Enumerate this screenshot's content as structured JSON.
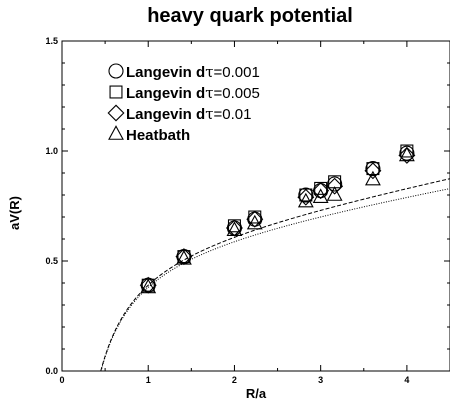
{
  "chart_data": {
    "type": "scatter",
    "title": "heavy quark potential",
    "xlabel": "R/a",
    "ylabel": "aV(R)",
    "xlim": [
      0,
      4.5
    ],
    "ylim": [
      0.0,
      1.5
    ],
    "x_ticks": [
      "0",
      "1",
      "2",
      "3",
      "4"
    ],
    "y_ticks": [
      "0.0",
      "0.5",
      "1.0",
      "1.5"
    ],
    "legend_position": "top-left",
    "series": [
      {
        "name": "Langevin dτ=0.001",
        "name_prefix": "Langevin d",
        "name_tau": "τ",
        "name_suffix": "=0.001",
        "marker": "circle",
        "points": [
          [
            1.0,
            0.39
          ],
          [
            1.414,
            0.52
          ],
          [
            2.0,
            0.65
          ],
          [
            2.236,
            0.69
          ],
          [
            2.828,
            0.8
          ],
          [
            3.0,
            0.82
          ],
          [
            3.162,
            0.85
          ],
          [
            3.606,
            0.92
          ],
          [
            4.0,
            0.99
          ]
        ]
      },
      {
        "name": "Langevin dτ=0.005",
        "name_prefix": "Langevin d",
        "name_tau": "τ",
        "name_suffix": "=0.005",
        "marker": "square",
        "points": [
          [
            1.0,
            0.39
          ],
          [
            1.414,
            0.52
          ],
          [
            2.0,
            0.66
          ],
          [
            2.236,
            0.7
          ],
          [
            2.828,
            0.8
          ],
          [
            3.0,
            0.83
          ],
          [
            3.162,
            0.86
          ],
          [
            3.606,
            0.92
          ],
          [
            4.0,
            1.0
          ]
        ]
      },
      {
        "name": "Langevin dτ=0.01",
        "name_prefix": "Langevin d",
        "name_tau": "τ",
        "name_suffix": "=0.01",
        "marker": "diamond",
        "points": [
          [
            1.0,
            0.39
          ],
          [
            1.414,
            0.52
          ],
          [
            2.0,
            0.65
          ],
          [
            2.236,
            0.69
          ],
          [
            2.828,
            0.79
          ],
          [
            3.0,
            0.82
          ],
          [
            3.162,
            0.84
          ],
          [
            3.606,
            0.91
          ],
          [
            4.0,
            0.98
          ]
        ]
      },
      {
        "name": "Heatbath",
        "name_prefix": "Heatbath",
        "name_tau": "",
        "name_suffix": "",
        "marker": "triangle",
        "points": [
          [
            1.0,
            0.38
          ],
          [
            1.414,
            0.51
          ],
          [
            2.0,
            0.64
          ],
          [
            2.236,
            0.67
          ],
          [
            2.828,
            0.77
          ],
          [
            3.0,
            0.79
          ],
          [
            3.162,
            0.8
          ],
          [
            3.606,
            0.87
          ],
          [
            4.0,
            0.98
          ]
        ]
      }
    ],
    "fit_curves": [
      {
        "style": "dashed",
        "V0": 0.6,
        "alpha": 0.285,
        "sigma": 0.075
      },
      {
        "style": "dotted",
        "V0": 0.6,
        "alpha": 0.285,
        "sigma": 0.065
      }
    ],
    "grid": false
  }
}
